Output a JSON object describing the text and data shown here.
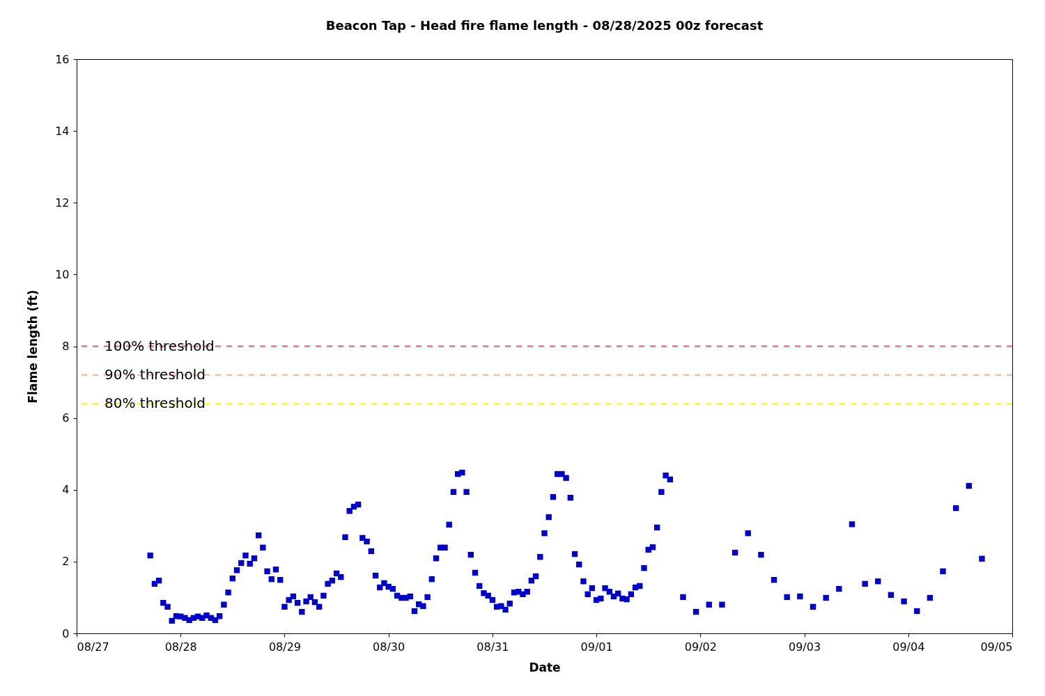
{
  "chart_data": {
    "type": "scatter",
    "title": "Beacon Tap - Head fire flame length - 08/28/2025 00z forecast",
    "xlabel": "Date",
    "ylabel": "Flame length (ft)",
    "x": [
      "2025-08-27T17:00",
      "2025-08-27T18:00",
      "2025-08-27T19:00",
      "2025-08-27T20:00",
      "2025-08-27T21:00",
      "2025-08-27T22:00",
      "2025-08-27T23:00",
      "2025-08-28T00:00",
      "2025-08-28T01:00",
      "2025-08-28T02:00",
      "2025-08-28T03:00",
      "2025-08-28T04:00",
      "2025-08-28T05:00",
      "2025-08-28T06:00",
      "2025-08-28T07:00",
      "2025-08-28T08:00",
      "2025-08-28T09:00",
      "2025-08-28T10:00",
      "2025-08-28T11:00",
      "2025-08-28T12:00",
      "2025-08-28T13:00",
      "2025-08-28T14:00",
      "2025-08-28T15:00",
      "2025-08-28T16:00",
      "2025-08-28T17:00",
      "2025-08-28T18:00",
      "2025-08-28T19:00",
      "2025-08-28T20:00",
      "2025-08-28T21:00",
      "2025-08-28T22:00",
      "2025-08-28T23:00",
      "2025-08-29T00:00",
      "2025-08-29T01:00",
      "2025-08-29T02:00",
      "2025-08-29T03:00",
      "2025-08-29T04:00",
      "2025-08-29T05:00",
      "2025-08-29T06:00",
      "2025-08-29T07:00",
      "2025-08-29T08:00",
      "2025-08-29T09:00",
      "2025-08-29T10:00",
      "2025-08-29T11:00",
      "2025-08-29T12:00",
      "2025-08-29T13:00",
      "2025-08-29T14:00",
      "2025-08-29T15:00",
      "2025-08-29T16:00",
      "2025-08-29T17:00",
      "2025-08-29T18:00",
      "2025-08-29T19:00",
      "2025-08-29T20:00",
      "2025-08-29T21:00",
      "2025-08-29T22:00",
      "2025-08-29T23:00",
      "2025-08-30T00:00",
      "2025-08-30T01:00",
      "2025-08-30T02:00",
      "2025-08-30T03:00",
      "2025-08-30T04:00",
      "2025-08-30T05:00",
      "2025-08-30T06:00",
      "2025-08-30T07:00",
      "2025-08-30T08:00",
      "2025-08-30T09:00",
      "2025-08-30T10:00",
      "2025-08-30T11:00",
      "2025-08-30T12:00",
      "2025-08-30T13:00",
      "2025-08-30T14:00",
      "2025-08-30T15:00",
      "2025-08-30T16:00",
      "2025-08-30T17:00",
      "2025-08-30T18:00",
      "2025-08-30T19:00",
      "2025-08-30T20:00",
      "2025-08-30T21:00",
      "2025-08-30T22:00",
      "2025-08-30T23:00",
      "2025-08-31T00:00",
      "2025-08-31T01:00",
      "2025-08-31T02:00",
      "2025-08-31T03:00",
      "2025-08-31T04:00",
      "2025-08-31T05:00",
      "2025-08-31T06:00",
      "2025-08-31T07:00",
      "2025-08-31T08:00",
      "2025-08-31T09:00",
      "2025-08-31T10:00",
      "2025-08-31T11:00",
      "2025-08-31T12:00",
      "2025-08-31T13:00",
      "2025-08-31T14:00",
      "2025-08-31T15:00",
      "2025-08-31T16:00",
      "2025-08-31T17:00",
      "2025-08-31T18:00",
      "2025-08-31T19:00",
      "2025-08-31T20:00",
      "2025-08-31T21:00",
      "2025-08-31T22:00",
      "2025-08-31T23:00",
      "2025-09-01T00:00",
      "2025-09-01T01:00",
      "2025-09-01T02:00",
      "2025-09-01T03:00",
      "2025-09-01T04:00",
      "2025-09-01T05:00",
      "2025-09-01T06:00",
      "2025-09-01T07:00",
      "2025-09-01T08:00",
      "2025-09-01T09:00",
      "2025-09-01T10:00",
      "2025-09-01T11:00",
      "2025-09-01T12:00",
      "2025-09-01T13:00",
      "2025-09-01T14:00",
      "2025-09-01T15:00",
      "2025-09-01T16:00",
      "2025-09-01T17:00",
      "2025-09-01T20:00",
      "2025-09-01T23:00",
      "2025-09-02T02:00",
      "2025-09-02T05:00",
      "2025-09-02T08:00",
      "2025-09-02T11:00",
      "2025-09-02T14:00",
      "2025-09-02T17:00",
      "2025-09-02T20:00",
      "2025-09-02T23:00",
      "2025-09-03T02:00",
      "2025-09-03T05:00",
      "2025-09-03T08:00",
      "2025-09-03T11:00",
      "2025-09-03T14:00",
      "2025-09-03T17:00",
      "2025-09-03T20:00",
      "2025-09-03T23:00",
      "2025-09-04T02:00",
      "2025-09-04T05:00",
      "2025-09-04T08:00",
      "2025-09-04T11:00",
      "2025-09-04T14:00",
      "2025-09-04T17:00"
    ],
    "series": [
      {
        "color": "#0000cc",
        "values": [
          2.17,
          1.38,
          1.47,
          0.85,
          0.74,
          0.35,
          0.48,
          0.47,
          0.43,
          0.37,
          0.43,
          0.47,
          0.43,
          0.5,
          0.43,
          0.37,
          0.48,
          0.8,
          1.14,
          1.53,
          1.76,
          1.96,
          2.17,
          1.94,
          2.09,
          2.73,
          2.39,
          1.73,
          1.51,
          1.78,
          1.49,
          0.74,
          0.93,
          1.03,
          0.85,
          0.6,
          0.89,
          1.01,
          0.87,
          0.74,
          1.05,
          1.38,
          1.47,
          1.67,
          1.57,
          2.68,
          3.41,
          3.53,
          3.59,
          2.66,
          2.56,
          2.29,
          1.61,
          1.28,
          1.4,
          1.3,
          1.24,
          1.05,
          0.99,
          0.99,
          1.03,
          0.62,
          0.81,
          0.76,
          1.01,
          1.51,
          2.09,
          2.39,
          2.39,
          3.03,
          3.94,
          4.44,
          4.48,
          3.94,
          2.19,
          1.69,
          1.32,
          1.12,
          1.05,
          0.93,
          0.74,
          0.76,
          0.66,
          0.83,
          1.14,
          1.16,
          1.09,
          1.16,
          1.47,
          1.59,
          2.13,
          2.79,
          3.24,
          3.8,
          4.44,
          4.44,
          4.33,
          3.78,
          2.21,
          1.92,
          1.45,
          1.09,
          1.26,
          0.93,
          0.97,
          1.26,
          1.16,
          1.03,
          1.11,
          0.97,
          0.95,
          1.09,
          1.28,
          1.32,
          1.82,
          2.33,
          2.4,
          2.95,
          3.94,
          4.4,
          4.29,
          1.01,
          0.6,
          0.8,
          0.8,
          2.25,
          2.79,
          2.19,
          1.49,
          1.01,
          1.03,
          0.74,
          0.99,
          1.24,
          3.04,
          1.38,
          1.45,
          1.07,
          0.89,
          0.62,
          0.99,
          1.73,
          3.49,
          4.11,
          2.08
        ]
      }
    ],
    "marker": "square",
    "xlim": [
      "2025-08-27",
      "2025-09-05"
    ],
    "xticks": [
      {
        "value": "2025-08-27",
        "label": "08/27"
      },
      {
        "value": "2025-08-28",
        "label": "08/28"
      },
      {
        "value": "2025-08-29",
        "label": "08/29"
      },
      {
        "value": "2025-08-30",
        "label": "08/30"
      },
      {
        "value": "2025-08-31",
        "label": "08/31"
      },
      {
        "value": "2025-09-01",
        "label": "09/01"
      },
      {
        "value": "2025-09-02",
        "label": "09/02"
      },
      {
        "value": "2025-09-03",
        "label": "09/03"
      },
      {
        "value": "2025-09-04",
        "label": "09/04"
      },
      {
        "value": "2025-09-05",
        "label": "09/05"
      }
    ],
    "ylim": [
      0,
      16
    ],
    "yticks": [
      0,
      2,
      4,
      6,
      8,
      10,
      12,
      14,
      16
    ],
    "ref_lines": [
      {
        "axis": "y",
        "value": 8,
        "label": "100% threshold",
        "color": "#e8566f",
        "line_style": "dashed"
      },
      {
        "axis": "y",
        "value": 7.2,
        "label": "90% threshold",
        "color": "#f4b183",
        "line_style": "dashed"
      },
      {
        "axis": "y",
        "value": 6.4,
        "label": "80% threshold",
        "color": "#ffff00",
        "line_style": "dashed"
      }
    ]
  }
}
